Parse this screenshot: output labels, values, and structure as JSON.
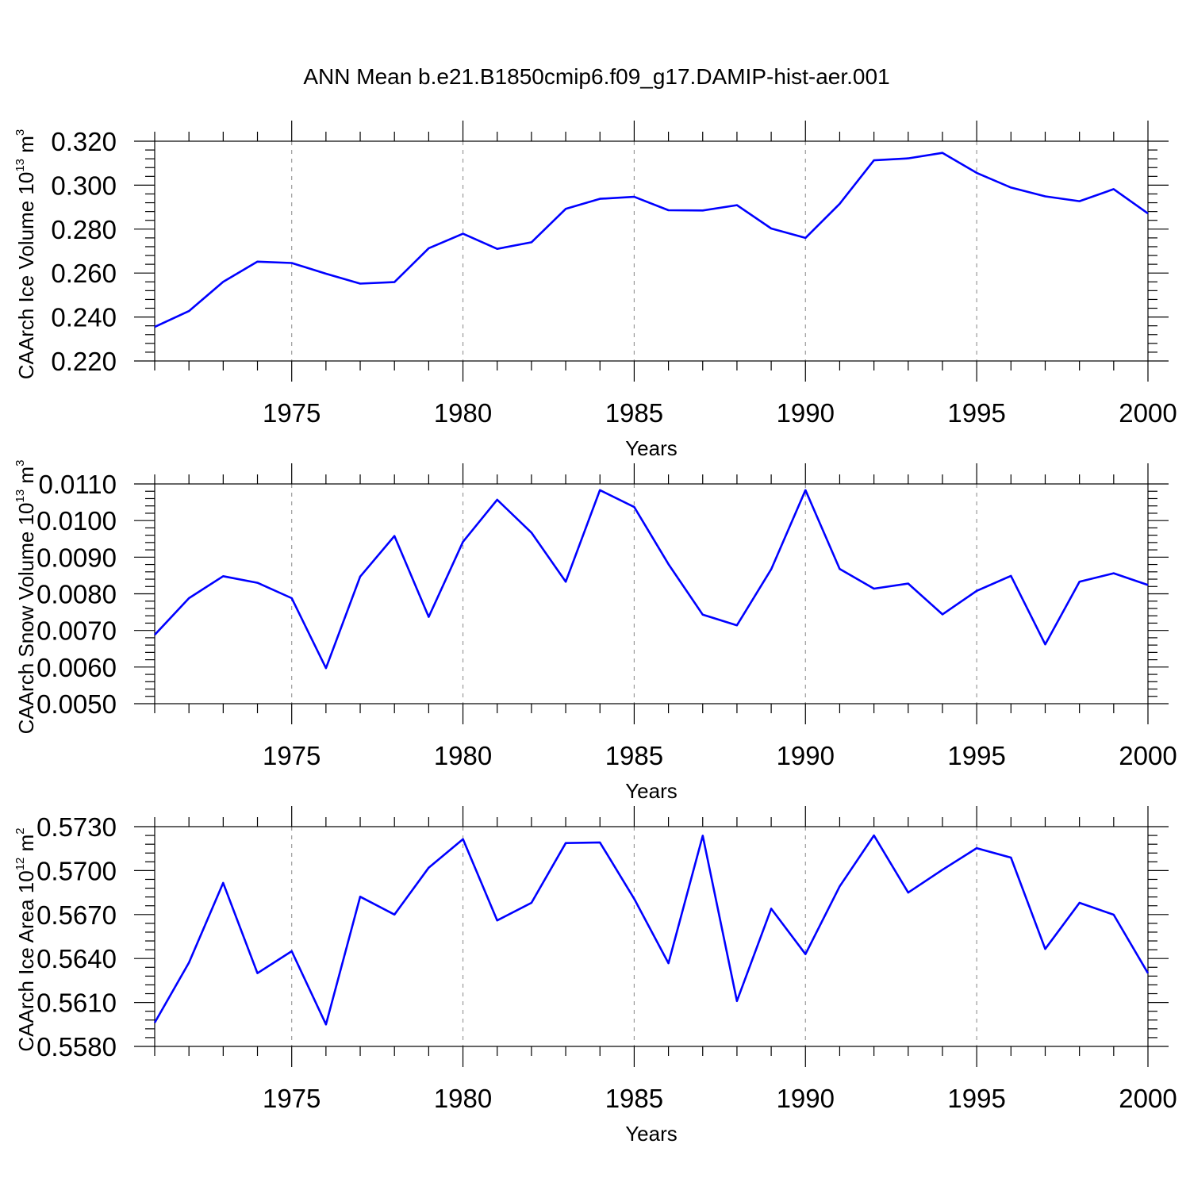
{
  "title": "ANN Mean b.e21.B1850cmip6.f09_g17.DAMIP-hist-aer.001",
  "chart_data": [
    {
      "type": "line",
      "id": "ice-volume",
      "ylabel": "CAArch Ice Volume 10",
      "ylabel_exp": "13",
      "ylabel_unit": " m",
      "ylabel_unit_exp": "3",
      "xlabel": "Years",
      "xlim": [
        1971,
        2000
      ],
      "ylim": [
        0.22,
        0.32
      ],
      "yticks": [
        "0.220",
        "0.240",
        "0.260",
        "0.280",
        "0.300",
        "0.320"
      ],
      "ytick_values": [
        0.22,
        0.24,
        0.26,
        0.28,
        0.3,
        0.32
      ],
      "xticks": [
        "1975",
        "1980",
        "1985",
        "1990",
        "1995",
        "2000"
      ],
      "xtick_values": [
        1975,
        1980,
        1985,
        1990,
        1995,
        2000
      ],
      "grid_x": [
        1975,
        1980,
        1985,
        1990,
        1995
      ],
      "color": "#0000ff",
      "x": [
        1971,
        1972,
        1973,
        1974,
        1975,
        1976,
        1977,
        1978,
        1979,
        1980,
        1981,
        1982,
        1983,
        1984,
        1985,
        1986,
        1987,
        1988,
        1989,
        1990,
        1991,
        1992,
        1993,
        1994,
        1995,
        1996,
        1997,
        1998,
        1999,
        2000
      ],
      "values": [
        0.2355,
        0.2427,
        0.256,
        0.2652,
        0.2646,
        0.2597,
        0.2552,
        0.2559,
        0.2713,
        0.2779,
        0.271,
        0.274,
        0.2892,
        0.2938,
        0.2947,
        0.2886,
        0.2885,
        0.2909,
        0.2803,
        0.276,
        0.2915,
        0.3113,
        0.3122,
        0.3147,
        0.3056,
        0.2989,
        0.2949,
        0.2927,
        0.2982,
        0.2871
      ]
    },
    {
      "type": "line",
      "id": "snow-volume",
      "ylabel": "CAArch Snow Volume 10",
      "ylabel_exp": "13",
      "ylabel_unit": " m",
      "ylabel_unit_exp": "3",
      "xlabel": "Years",
      "xlim": [
        1971,
        2000
      ],
      "ylim": [
        0.005,
        0.011
      ],
      "yticks": [
        "0.0050",
        "0.0060",
        "0.0070",
        "0.0080",
        "0.0090",
        "0.0100",
        "0.0110"
      ],
      "ytick_values": [
        0.005,
        0.006,
        0.007,
        0.008,
        0.009,
        0.01,
        0.011
      ],
      "xticks": [
        "1975",
        "1980",
        "1985",
        "1990",
        "1995",
        "2000"
      ],
      "xtick_values": [
        1975,
        1980,
        1985,
        1990,
        1995,
        2000
      ],
      "grid_x": [
        1975,
        1980,
        1985,
        1990,
        1995
      ],
      "color": "#0000ff",
      "x": [
        1971,
        1972,
        1973,
        1974,
        1975,
        1976,
        1977,
        1978,
        1979,
        1980,
        1981,
        1982,
        1983,
        1984,
        1985,
        1986,
        1987,
        1988,
        1989,
        1990,
        1991,
        1992,
        1993,
        1994,
        1995,
        1996,
        1997,
        1998,
        1999,
        2000
      ],
      "values": [
        0.00688,
        0.00788,
        0.00848,
        0.0083,
        0.00788,
        0.00597,
        0.00847,
        0.00958,
        0.00737,
        0.00942,
        0.01057,
        0.00967,
        0.00833,
        0.01083,
        0.01037,
        0.00881,
        0.00743,
        0.00714,
        0.00867,
        0.01083,
        0.00868,
        0.00814,
        0.00828,
        0.00744,
        0.00808,
        0.00849,
        0.00662,
        0.00833,
        0.00856,
        0.00824
      ]
    },
    {
      "type": "line",
      "id": "ice-area",
      "ylabel": "CAArch Ice Area 10",
      "ylabel_exp": "12",
      "ylabel_unit": " m",
      "ylabel_unit_exp": "2",
      "xlabel": "Years",
      "xlim": [
        1971,
        2000
      ],
      "ylim": [
        0.558,
        0.573
      ],
      "yticks": [
        "0.5580",
        "0.5610",
        "0.5640",
        "0.5670",
        "0.5700",
        "0.5730"
      ],
      "ytick_values": [
        0.558,
        0.561,
        0.564,
        0.567,
        0.57,
        0.573
      ],
      "xticks": [
        "1975",
        "1980",
        "1985",
        "1990",
        "1995",
        "2000"
      ],
      "xtick_values": [
        1975,
        1980,
        1985,
        1990,
        1995,
        2000
      ],
      "grid_x": [
        1975,
        1980,
        1985,
        1990,
        1995
      ],
      "color": "#0000ff",
      "x": [
        1971,
        1972,
        1973,
        1974,
        1975,
        1976,
        1977,
        1978,
        1979,
        1980,
        1981,
        1982,
        1983,
        1984,
        1985,
        1986,
        1987,
        1988,
        1989,
        1990,
        1991,
        1992,
        1993,
        1994,
        1995,
        1996,
        1997,
        1998,
        1999,
        2000
      ],
      "values": [
        0.55962,
        0.56372,
        0.56916,
        0.563,
        0.5645,
        0.5595,
        0.56822,
        0.567,
        0.5702,
        0.57215,
        0.5666,
        0.5678,
        0.57188,
        0.57192,
        0.56808,
        0.56368,
        0.57238,
        0.5611,
        0.5674,
        0.5643,
        0.56892,
        0.5724,
        0.5685,
        0.57006,
        0.57153,
        0.57089,
        0.56465,
        0.5678,
        0.56699,
        0.563
      ]
    }
  ]
}
